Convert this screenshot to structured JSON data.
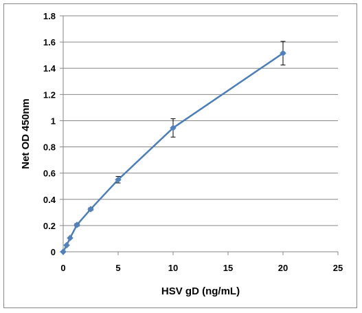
{
  "chart_data": {
    "type": "scatter",
    "title": "",
    "xlabel": "HSV gD (ng/mL)",
    "ylabel": "Net OD 450nm",
    "xlim": [
      0,
      25
    ],
    "ylim": [
      0,
      1.8
    ],
    "x_ticks": [
      "0",
      "5",
      "10",
      "15",
      "20",
      "25"
    ],
    "y_ticks": [
      "0",
      "0.2",
      "0.4",
      "0.6",
      "0.8",
      "1",
      "1.2",
      "1.4",
      "1.6",
      "1.8"
    ],
    "grid": "horizontal",
    "legend": "none",
    "line_color": "#4a7ebb",
    "marker_color": "#4f81bd",
    "errorbar_color": "#000000",
    "series": [
      {
        "x": [
          0,
          0.3125,
          0.625,
          1.25,
          2.5,
          5,
          10,
          20
        ],
        "y": [
          0,
          0.05,
          0.105,
          0.205,
          0.325,
          0.55,
          0.945,
          1.515
        ],
        "error": [
          0,
          0.005,
          0.005,
          0.01,
          0.01,
          0.025,
          0.07,
          0.09
        ]
      }
    ]
  }
}
